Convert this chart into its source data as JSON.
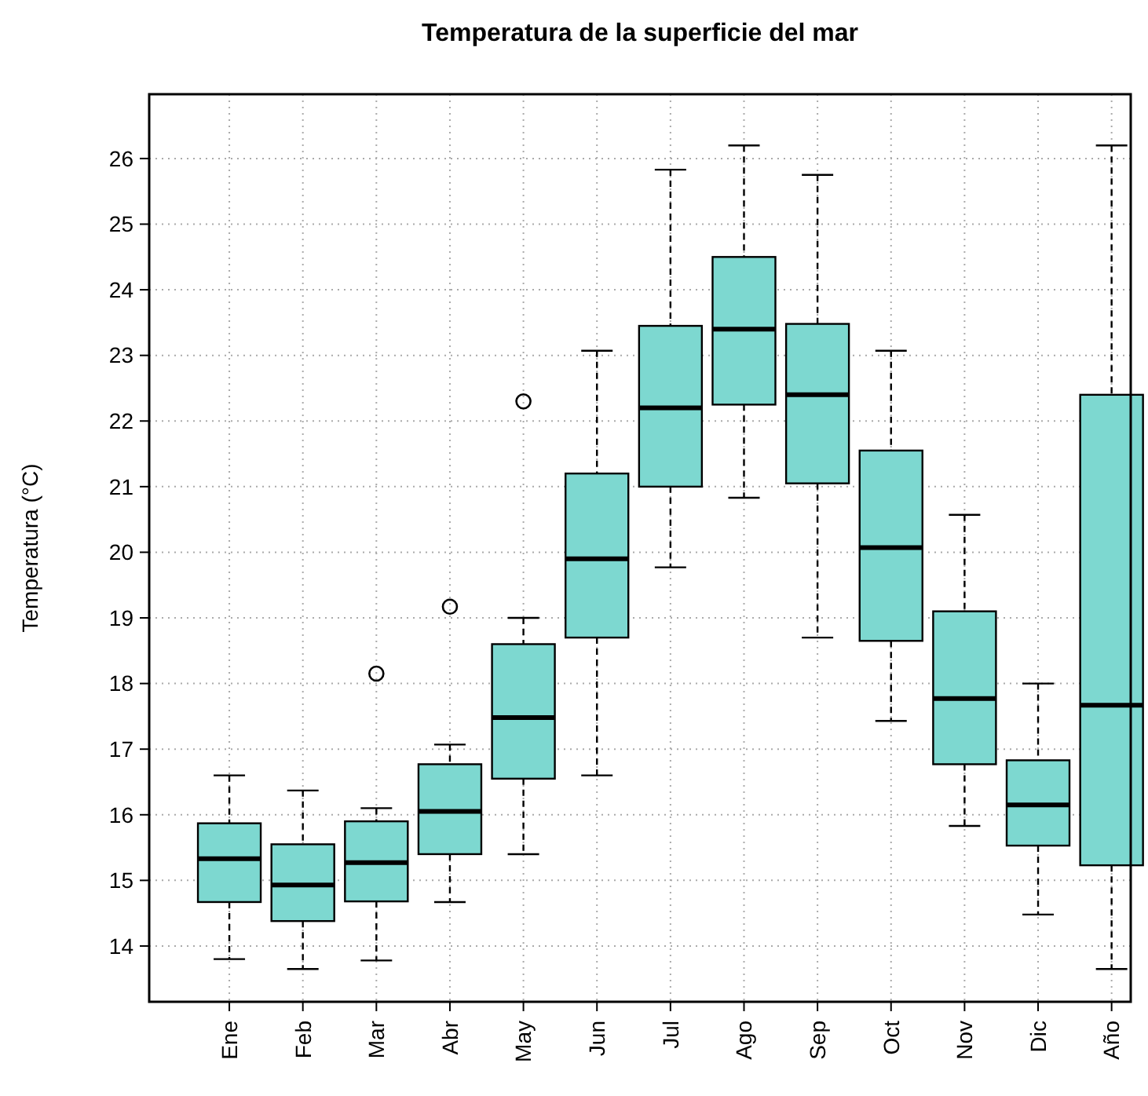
{
  "chart_data": {
    "type": "box",
    "title": "Temperatura de la superficie del mar",
    "ylabel": "Temperatura (°C)",
    "categories": [
      "Ene",
      "Feb",
      "Mar",
      "Abr",
      "May",
      "Jun",
      "Jul",
      "Ago",
      "Sep",
      "Oct",
      "Nov",
      "Dic",
      "Año"
    ],
    "color": "#7dd8d0",
    "boxes": [
      {
        "low": 13.8,
        "q1": 14.67,
        "median": 15.33,
        "q3": 15.87,
        "high": 16.6
      },
      {
        "low": 13.65,
        "q1": 14.38,
        "median": 14.93,
        "q3": 15.55,
        "high": 16.37
      },
      {
        "low": 13.78,
        "q1": 14.68,
        "median": 15.27,
        "q3": 15.9,
        "high": 16.1,
        "outliers": [
          18.15
        ]
      },
      {
        "low": 14.67,
        "q1": 15.4,
        "median": 16.05,
        "q3": 16.77,
        "high": 17.07,
        "outliers": [
          19.17
        ]
      },
      {
        "low": 15.4,
        "q1": 16.55,
        "median": 17.48,
        "q3": 18.6,
        "high": 19.0,
        "outliers": [
          22.3
        ]
      },
      {
        "low": 16.6,
        "q1": 18.7,
        "median": 19.9,
        "q3": 21.2,
        "high": 23.07
      },
      {
        "low": 19.77,
        "q1": 21.0,
        "median": 22.2,
        "q3": 23.45,
        "high": 25.83
      },
      {
        "low": 20.83,
        "q1": 22.25,
        "median": 23.4,
        "q3": 24.5,
        "high": 26.2
      },
      {
        "low": 18.7,
        "q1": 21.05,
        "median": 22.4,
        "q3": 23.48,
        "high": 25.75
      },
      {
        "low": 17.43,
        "q1": 18.65,
        "median": 20.07,
        "q3": 21.55,
        "high": 23.07
      },
      {
        "low": 15.83,
        "q1": 16.77,
        "median": 17.77,
        "q3": 19.1,
        "high": 20.57
      },
      {
        "low": 14.48,
        "q1": 15.53,
        "median": 16.15,
        "q3": 16.83,
        "high": 18.0
      },
      {
        "low": 13.65,
        "q1": 15.23,
        "median": 17.67,
        "q3": 22.4,
        "high": 26.2
      }
    ],
    "ylim": [
      13.15,
      26.98
    ],
    "yticks": [
      14,
      15,
      16,
      17,
      18,
      19,
      20,
      21,
      22,
      23,
      24,
      25,
      26
    ],
    "grid": true
  }
}
